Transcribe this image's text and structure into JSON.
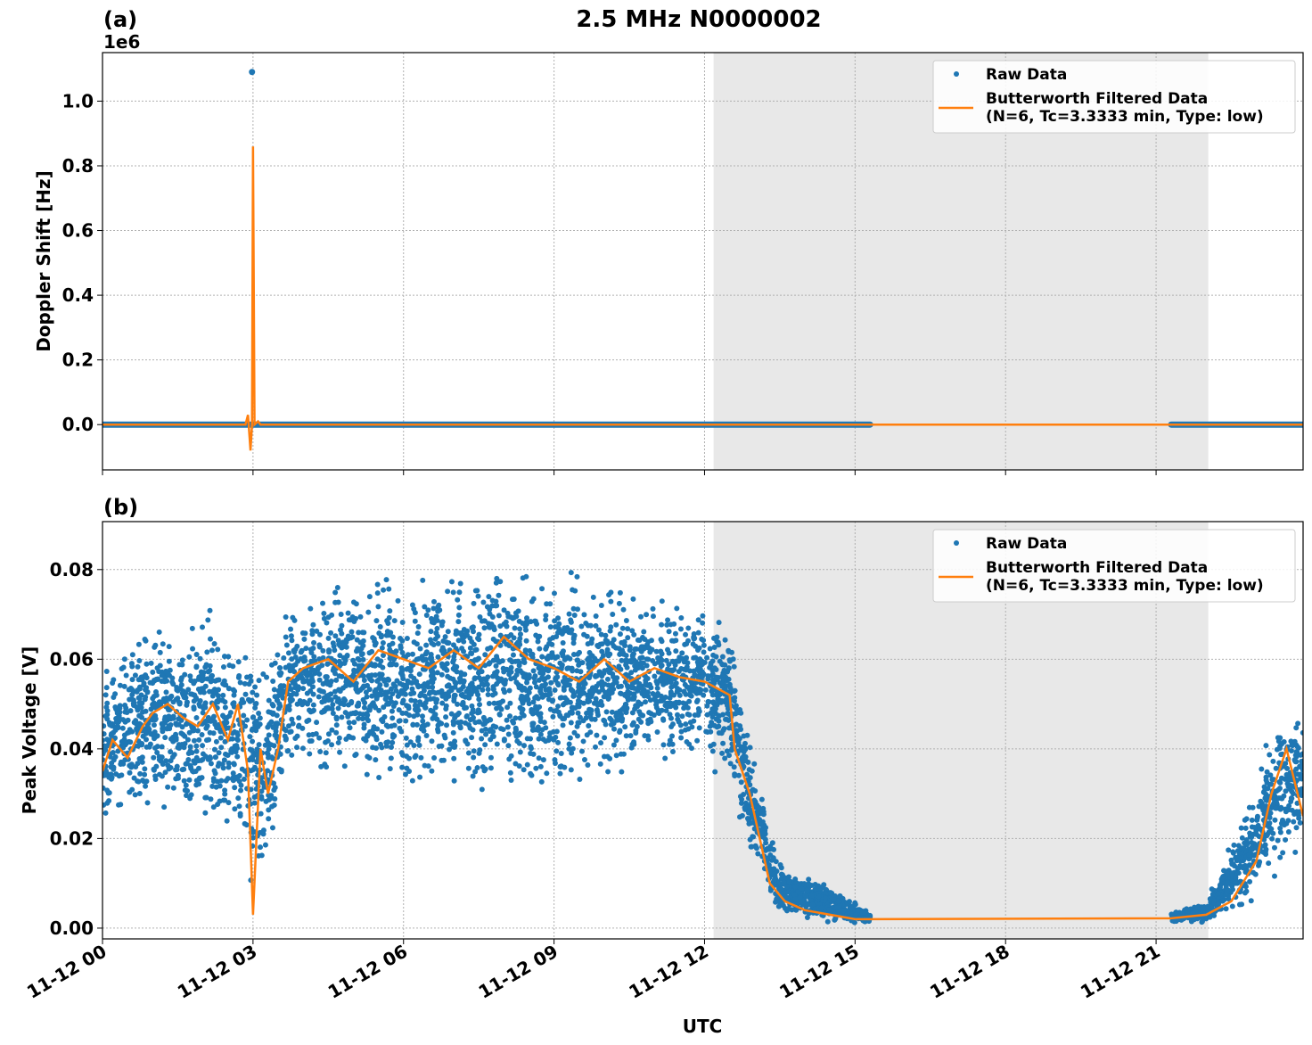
{
  "chart_data": [
    {
      "type": "scatter",
      "panel_label": "(a)",
      "title": "2.5 MHz N0000002",
      "ylabel": "Doppler Shift [Hz]",
      "y_offset_label": "1e6",
      "ylim": [
        -140000,
        1150000
      ],
      "xlim_hours": [
        0,
        23.93
      ],
      "yticks": [
        0,
        200000,
        400000,
        600000,
        800000,
        1000000
      ],
      "ytick_labels": [
        "0.0",
        "0.2",
        "0.4",
        "0.6",
        "0.8",
        "1.0"
      ],
      "shaded_hours": [
        12.18,
        22.04
      ],
      "raw_segments_hours": [
        [
          0,
          15.3
        ],
        [
          21.3,
          23.93
        ]
      ],
      "raw_value": 0,
      "raw_outliers": [
        {
          "h": 2.98,
          "v": 1090000
        }
      ],
      "filtered": [
        [
          0,
          0
        ],
        [
          2.85,
          0
        ],
        [
          2.9,
          30000
        ],
        [
          2.95,
          -80000
        ],
        [
          2.98,
          0
        ],
        [
          3.0,
          860000
        ],
        [
          3.03,
          0
        ],
        [
          3.1,
          10000
        ],
        [
          3.15,
          0
        ],
        [
          23.93,
          0
        ]
      ],
      "legend": {
        "raw": "Raw Data",
        "filtered_line1": "Butterworth Filtered Data",
        "filtered_line2": "(N=6, Tc=3.3333 min, Type: low)",
        "position": "top-right"
      }
    },
    {
      "type": "scatter",
      "panel_label": "(b)",
      "ylabel": "Peak Voltage [V]",
      "xlabel": "UTC",
      "ylim": [
        -0.0024,
        0.0907
      ],
      "xlim_hours": [
        0,
        23.93
      ],
      "yticks": [
        0,
        0.02,
        0.04,
        0.06,
        0.08
      ],
      "ytick_labels": [
        "0.00",
        "0.02",
        "0.04",
        "0.06",
        "0.08"
      ],
      "xtick_hours": [
        0,
        3,
        6,
        9,
        12,
        15,
        18,
        21
      ],
      "xtick_labels": [
        "11-12 00",
        "11-12 03",
        "11-12 06",
        "11-12 09",
        "11-12 12",
        "11-12 15",
        "11-12 18",
        "11-12 21"
      ],
      "shaded_hours": [
        12.18,
        22.04
      ],
      "raw_envelope": [
        [
          0,
          0.02,
          0.06
        ],
        [
          1,
          0.025,
          0.07
        ],
        [
          2,
          0.02,
          0.072
        ],
        [
          2.8,
          0.01,
          0.075
        ],
        [
          3.0,
          0.005,
          0.07
        ],
        [
          3.3,
          0.01,
          0.06
        ],
        [
          3.7,
          0.03,
          0.078
        ],
        [
          5,
          0.03,
          0.08
        ],
        [
          8,
          0.025,
          0.085
        ],
        [
          10,
          0.03,
          0.08
        ],
        [
          12,
          0.035,
          0.075
        ],
        [
          12.5,
          0.03,
          0.07
        ],
        [
          13,
          0.01,
          0.04
        ],
        [
          13.5,
          0.002,
          0.015
        ],
        [
          14.5,
          0.001,
          0.01
        ],
        [
          15.3,
          0.001,
          0.004
        ]
      ],
      "raw_envelope2": [
        [
          21.3,
          0.001,
          0.004
        ],
        [
          22,
          0.001,
          0.006
        ],
        [
          22.5,
          0.003,
          0.02
        ],
        [
          23,
          0.005,
          0.035
        ],
        [
          23.5,
          0.01,
          0.055
        ],
        [
          23.93,
          0.015,
          0.05
        ]
      ],
      "filtered": [
        [
          0,
          0.035
        ],
        [
          0.2,
          0.042
        ],
        [
          0.5,
          0.038
        ],
        [
          0.8,
          0.045
        ],
        [
          1.0,
          0.048
        ],
        [
          1.3,
          0.05
        ],
        [
          1.6,
          0.047
        ],
        [
          1.9,
          0.045
        ],
        [
          2.2,
          0.05
        ],
        [
          2.5,
          0.042
        ],
        [
          2.7,
          0.05
        ],
        [
          2.9,
          0.035
        ],
        [
          3.0,
          0.003
        ],
        [
          3.15,
          0.04
        ],
        [
          3.3,
          0.03
        ],
        [
          3.5,
          0.04
        ],
        [
          3.7,
          0.055
        ],
        [
          4.0,
          0.058
        ],
        [
          4.5,
          0.06
        ],
        [
          5,
          0.055
        ],
        [
          5.5,
          0.062
        ],
        [
          6,
          0.06
        ],
        [
          6.5,
          0.058
        ],
        [
          7,
          0.062
        ],
        [
          7.5,
          0.058
        ],
        [
          8,
          0.065
        ],
        [
          8.5,
          0.06
        ],
        [
          9,
          0.058
        ],
        [
          9.5,
          0.055
        ],
        [
          10,
          0.06
        ],
        [
          10.5,
          0.055
        ],
        [
          11,
          0.058
        ],
        [
          11.5,
          0.056
        ],
        [
          12,
          0.055
        ],
        [
          12.5,
          0.052
        ],
        [
          12.6,
          0.04
        ],
        [
          12.9,
          0.03
        ],
        [
          13.1,
          0.02
        ],
        [
          13.3,
          0.01
        ],
        [
          13.6,
          0.006
        ],
        [
          14,
          0.004
        ],
        [
          14.5,
          0.003
        ],
        [
          15,
          0.002
        ],
        [
          15.3,
          0.002
        ],
        [
          21.3,
          0.0022
        ],
        [
          22,
          0.003
        ],
        [
          22.5,
          0.006
        ],
        [
          23,
          0.015
        ],
        [
          23.3,
          0.03
        ],
        [
          23.6,
          0.04
        ],
        [
          23.93,
          0.025
        ]
      ],
      "legend": {
        "raw": "Raw Data",
        "filtered_line1": "Butterworth Filtered Data",
        "filtered_line2": "(N=6, Tc=3.3333 min, Type: low)",
        "position": "top-right"
      }
    }
  ],
  "colors": {
    "raw": "#1f77b4",
    "filtered": "#ff7f0e",
    "shade": "#e8e8e8"
  }
}
